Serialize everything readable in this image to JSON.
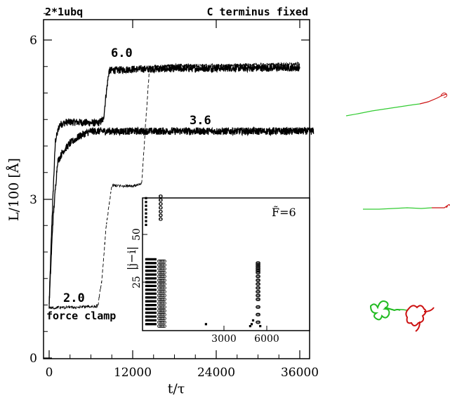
{
  "chart_data": {
    "type": "line",
    "title": "2*1ubq",
    "subtitle": "C terminus fixed",
    "xlabel": "t/τ",
    "ylabel": "L/100 [Å]",
    "xlim": [
      -1000,
      38000
    ],
    "ylim": [
      0,
      6.6
    ],
    "xticks": [
      "0",
      "12000",
      "24000",
      "36000"
    ],
    "yticks": [
      "0",
      "3",
      "6"
    ],
    "annotations": {
      "label_f6": "6.0",
      "label_f36": "3.6",
      "label_f2": "2.0",
      "clamp": "force clamp"
    },
    "series": [
      {
        "label": "6.0",
        "style": "solid",
        "x": [
          0,
          400,
          900,
          1500,
          2500,
          4000,
          5500,
          7000,
          7800,
          8200,
          8600,
          9000,
          9500,
          12000,
          18000,
          24000,
          30000,
          36000
        ],
        "y": [
          1.0,
          2.6,
          4.1,
          4.4,
          4.45,
          4.45,
          4.44,
          4.43,
          4.5,
          5.0,
          5.42,
          5.43,
          5.43,
          5.45,
          5.46,
          5.47,
          5.47,
          5.48
        ]
      },
      {
        "label": "3.6",
        "style": "solid",
        "x": [
          0,
          500,
          1200,
          2000,
          3000,
          4500,
          6000,
          9000,
          12000,
          18000,
          24000,
          30000,
          36000,
          38000
        ],
        "y": [
          1.0,
          2.5,
          3.7,
          3.9,
          4.05,
          4.2,
          4.28,
          4.28,
          4.28,
          4.28,
          4.28,
          4.28,
          4.28,
          4.28
        ]
      },
      {
        "label": "2.0",
        "style": "dashed",
        "x": [
          0,
          3000,
          6000,
          7000,
          7600,
          8200,
          9000,
          12500,
          13300,
          13900,
          14400,
          15000,
          18000,
          24000,
          30000,
          36000
        ],
        "y": [
          0.95,
          0.95,
          0.97,
          0.98,
          1.5,
          2.5,
          3.25,
          3.25,
          3.3,
          4.5,
          5.45,
          5.5,
          5.52,
          5.52,
          5.53,
          5.55
        ]
      }
    ],
    "inset": {
      "type": "scatter",
      "label": "F̃=6",
      "ylabel": "|j−i|",
      "xticks": [
        "3000",
        "6000"
      ],
      "yticks": [
        "25",
        "50"
      ],
      "xlim": [
        -150,
        8400
      ],
      "ylim": [
        0,
        70
      ],
      "filled": {
        "x": [
          20,
          20,
          20,
          20,
          20,
          20,
          20,
          20,
          20,
          20,
          20,
          20,
          20,
          20,
          20,
          20,
          20,
          20,
          80,
          80,
          80,
          80,
          80,
          80,
          80,
          80,
          80,
          80,
          80,
          80,
          80,
          80,
          80,
          80,
          80,
          80,
          150,
          150,
          150,
          150,
          150,
          150,
          150,
          150,
          150,
          150,
          150,
          150,
          150,
          150,
          150,
          150,
          150,
          150,
          230,
          230,
          230,
          230,
          230,
          230,
          230,
          230,
          230,
          230,
          230,
          230,
          230,
          230,
          230,
          230,
          230,
          230,
          330,
          330,
          330,
          330,
          330,
          330,
          330,
          330,
          330,
          330,
          330,
          330,
          330,
          330,
          330,
          330,
          330,
          330,
          440,
          440,
          440,
          440,
          440,
          440,
          440,
          440,
          440,
          440,
          440,
          440,
          440,
          440,
          440,
          440,
          440,
          440,
          550,
          550,
          550,
          550,
          550,
          550,
          550,
          550,
          550,
          550,
          550,
          550,
          550,
          550,
          550,
          550,
          550,
          550,
          660,
          660,
          660,
          660,
          660,
          660,
          660,
          660,
          660,
          660,
          660,
          660,
          660,
          660,
          660,
          660,
          660,
          660,
          0,
          0,
          0,
          0,
          0,
          0,
          0,
          0,
          4200,
          7300,
          7400,
          7500,
          8000
        ],
        "y": [
          3,
          5,
          7,
          9,
          11,
          13,
          15,
          17,
          19,
          21,
          23,
          25,
          27,
          29,
          31,
          33,
          35,
          37,
          3,
          5,
          7,
          9,
          11,
          13,
          15,
          17,
          19,
          21,
          23,
          25,
          27,
          29,
          31,
          33,
          35,
          37,
          3,
          5,
          7,
          9,
          11,
          13,
          15,
          17,
          19,
          21,
          23,
          25,
          27,
          29,
          31,
          33,
          35,
          37,
          3,
          5,
          7,
          9,
          11,
          13,
          15,
          17,
          19,
          21,
          23,
          25,
          27,
          29,
          31,
          33,
          35,
          37,
          3,
          5,
          7,
          9,
          11,
          13,
          15,
          17,
          19,
          21,
          23,
          25,
          27,
          29,
          31,
          33,
          35,
          37,
          3,
          5,
          7,
          9,
          11,
          13,
          15,
          17,
          19,
          21,
          23,
          25,
          27,
          29,
          31,
          33,
          35,
          37,
          3,
          5,
          7,
          9,
          11,
          13,
          15,
          17,
          19,
          21,
          23,
          25,
          27,
          29,
          31,
          33,
          35,
          37,
          3,
          5,
          7,
          9,
          11,
          13,
          15,
          17,
          19,
          21,
          23,
          25,
          27,
          29,
          31,
          33,
          35,
          37,
          55,
          57,
          59,
          61,
          63,
          65,
          67,
          69,
          3,
          2,
          3,
          5,
          2
        ]
      },
      "open": {
        "x": [
          900,
          1000,
          1100,
          1200,
          1300,
          900,
          1000,
          1100,
          1200,
          1300,
          900,
          1000,
          1100,
          1200,
          1300,
          900,
          1000,
          1100,
          1200,
          1300,
          900,
          1000,
          1100,
          1200,
          1300,
          900,
          1000,
          1100,
          1200,
          1300,
          900,
          1000,
          1100,
          1200,
          1300,
          900,
          1000,
          1100,
          1200,
          1300,
          900,
          1000,
          1100,
          1200,
          1300,
          900,
          1000,
          1100,
          1200,
          1300,
          900,
          1000,
          1100,
          1200,
          1300,
          900,
          1000,
          1100,
          1200,
          1300,
          900,
          1000,
          1100,
          1200,
          1300,
          900,
          1000,
          1100,
          1200,
          1300,
          900,
          1000,
          1100,
          1200,
          1300,
          900,
          1000,
          1100,
          1200,
          1300,
          900,
          1000,
          1100,
          1200,
          1300,
          900,
          1000,
          1100,
          1200,
          1300,
          1000,
          1050,
          1000,
          1050,
          1000,
          1050,
          1000,
          1050,
          1000,
          1050,
          1000,
          1050,
          1000,
          1050,
          7800,
          7850,
          7900,
          7800,
          7850,
          7900,
          7800,
          7850,
          7900,
          7800,
          7850,
          7900,
          7800,
          7850,
          7900,
          7800,
          7850,
          7900,
          7800,
          7850,
          7900,
          7800,
          7850,
          7900,
          7800,
          7850,
          7900,
          7800,
          7850,
          7900,
          7800,
          7850,
          7900,
          7800,
          7850,
          7900,
          7800,
          7850,
          7900,
          7800,
          7850,
          7900,
          7800,
          7850,
          7900,
          7800,
          7850,
          7900
        ],
        "y": [
          2,
          2,
          2,
          2,
          2,
          4,
          4,
          4,
          4,
          4,
          6,
          6,
          6,
          6,
          6,
          8,
          8,
          8,
          8,
          8,
          10,
          10,
          10,
          10,
          10,
          12,
          12,
          12,
          12,
          12,
          14,
          14,
          14,
          14,
          14,
          16,
          16,
          16,
          16,
          16,
          18,
          18,
          18,
          18,
          18,
          20,
          20,
          20,
          20,
          20,
          22,
          22,
          22,
          22,
          22,
          24,
          24,
          24,
          24,
          24,
          26,
          26,
          26,
          26,
          26,
          28,
          28,
          28,
          28,
          28,
          30,
          30,
          30,
          30,
          30,
          32,
          32,
          32,
          32,
          32,
          34,
          34,
          34,
          34,
          34,
          36,
          36,
          36,
          36,
          36,
          58,
          58,
          60,
          60,
          62,
          62,
          64,
          64,
          66,
          66,
          68,
          68,
          70,
          70,
          4,
          4,
          4,
          8,
          8,
          8,
          12,
          12,
          12,
          16,
          16,
          16,
          18,
          18,
          18,
          20,
          20,
          20,
          22,
          22,
          22,
          24,
          24,
          24,
          26,
          26,
          26,
          28,
          28,
          28,
          30,
          30,
          30,
          31,
          31,
          31,
          32,
          32,
          32,
          33,
          33,
          33,
          34,
          34,
          34,
          35,
          35,
          35
        ]
      }
    },
    "colors": {
      "axis": "#000000",
      "green": "#33cc33",
      "red": "#cc1111"
    }
  }
}
